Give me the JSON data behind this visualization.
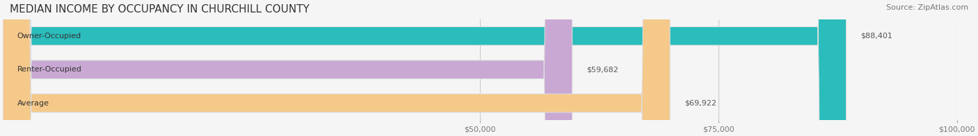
{
  "title": "MEDIAN INCOME BY OCCUPANCY IN CHURCHILL COUNTY",
  "source": "Source: ZipAtlas.com",
  "categories": [
    "Owner-Occupied",
    "Renter-Occupied",
    "Average"
  ],
  "values": [
    88401,
    59682,
    69922
  ],
  "bar_colors": [
    "#2bbcbc",
    "#c9a8d4",
    "#f5c98a"
  ],
  "label_colors": [
    "#ffffff",
    "#555555",
    "#555555"
  ],
  "value_labels": [
    "$88,401",
    "$59,682",
    "$69,922"
  ],
  "xlim": [
    0,
    100000
  ],
  "xticks": [
    50000,
    75000,
    100000
  ],
  "xtick_labels": [
    "$50,000",
    "$75,000",
    "$100,000"
  ],
  "title_fontsize": 11,
  "source_fontsize": 8,
  "bar_label_fontsize": 8,
  "value_label_fontsize": 8,
  "background_color": "#f5f5f5",
  "bar_edge_color": "#dddddd",
  "bar_height": 0.55,
  "title_color": "#333333",
  "tick_label_color": "#777777"
}
